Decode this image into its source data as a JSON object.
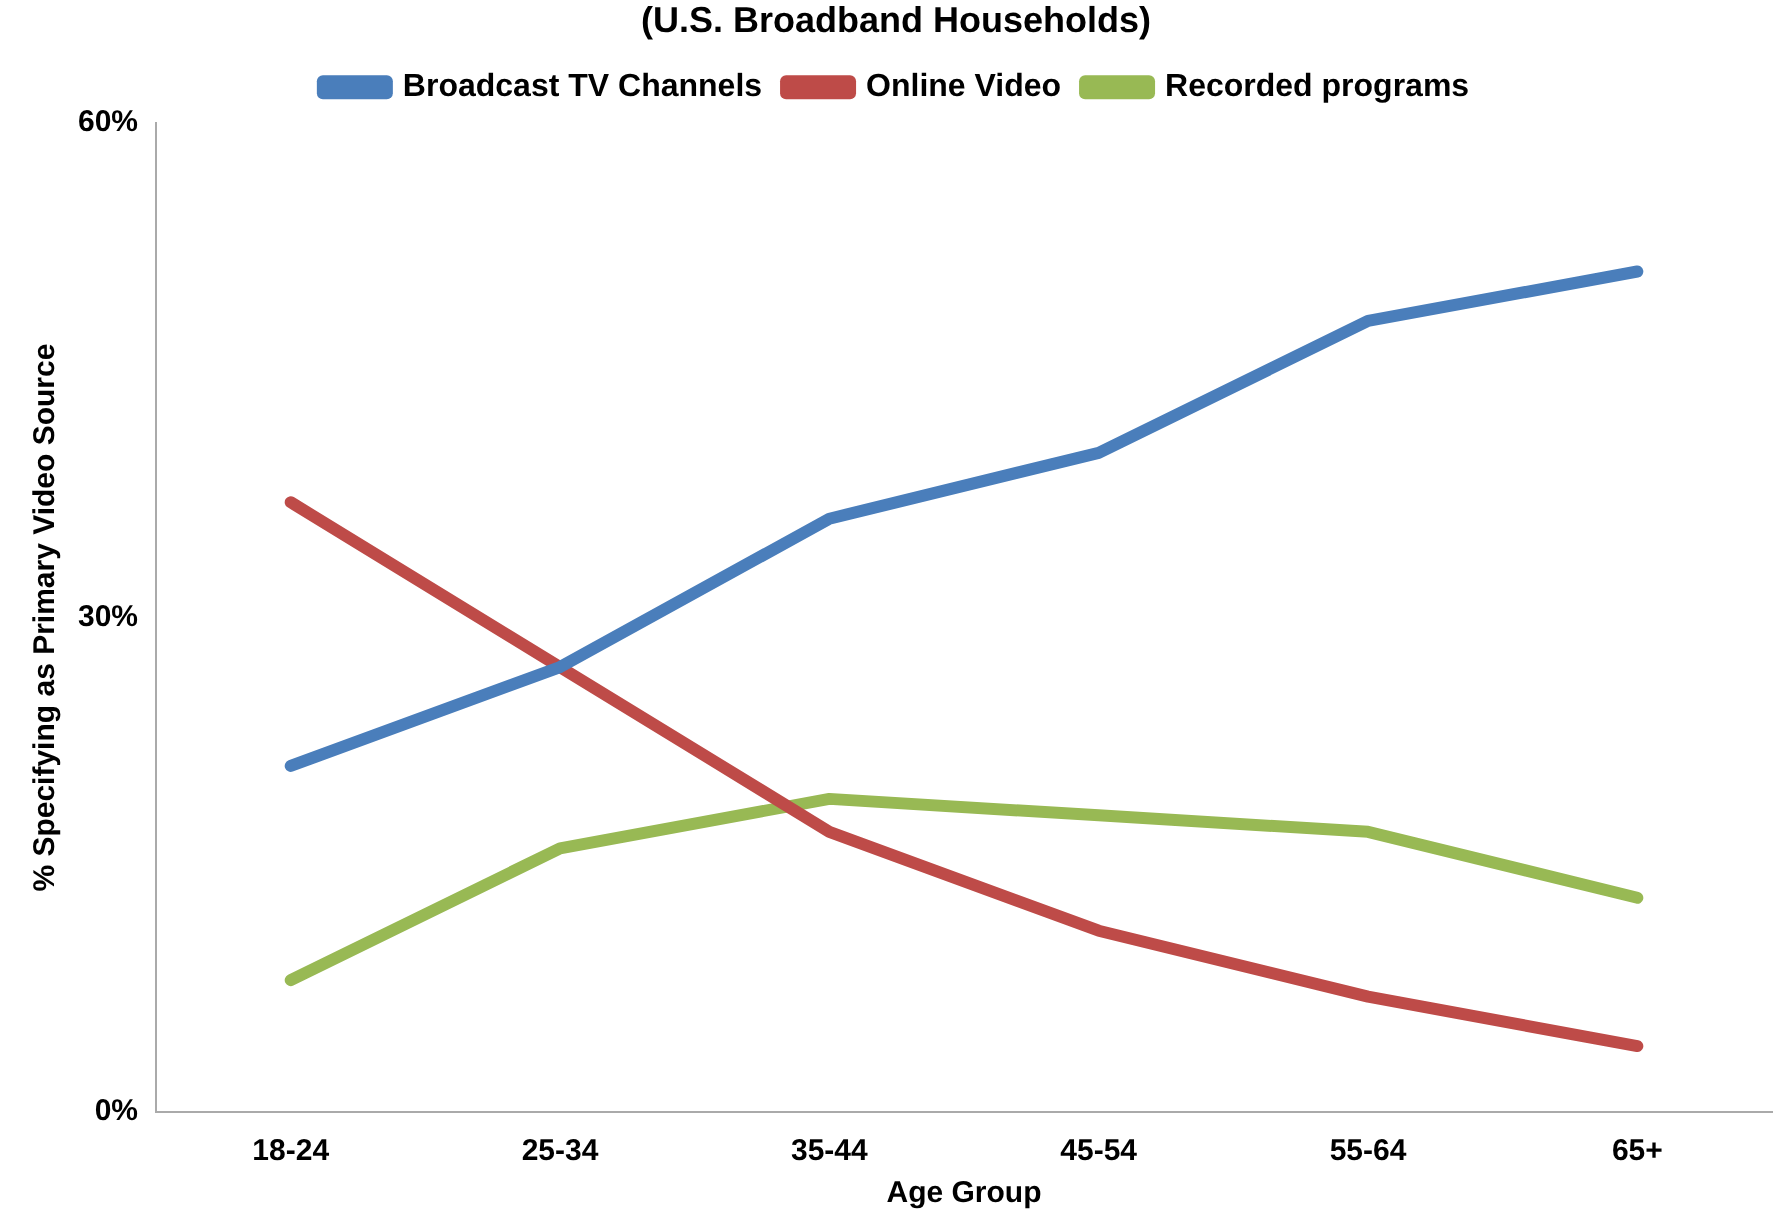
{
  "chart_data": {
    "type": "line",
    "title": "(U.S. Broadband Households)",
    "xlabel": "Age Group",
    "ylabel": "% Specifying as Primary Video Source",
    "categories": [
      "18-24",
      "25-34",
      "35-44",
      "45-54",
      "55-64",
      "65+"
    ],
    "series": [
      {
        "name": "Broadcast TV Channels",
        "color": "#4a7ebb",
        "values": [
          21,
          27,
          36,
          40,
          48,
          51
        ]
      },
      {
        "name": "Online Video",
        "color": "#be4b48",
        "values": [
          37,
          27,
          17,
          11,
          7,
          4
        ]
      },
      {
        "name": "Recorded programs",
        "color": "#98b954",
        "values": [
          8,
          16,
          19,
          18,
          17,
          13
        ]
      }
    ],
    "ylim": [
      0,
      60
    ],
    "yticks": [
      {
        "value": 0,
        "label": "0%"
      },
      {
        "value": 30,
        "label": "30%"
      },
      {
        "value": 60,
        "label": "60%"
      }
    ],
    "grid": false,
    "legend": "top",
    "marker": "none",
    "line_style": "solid"
  }
}
